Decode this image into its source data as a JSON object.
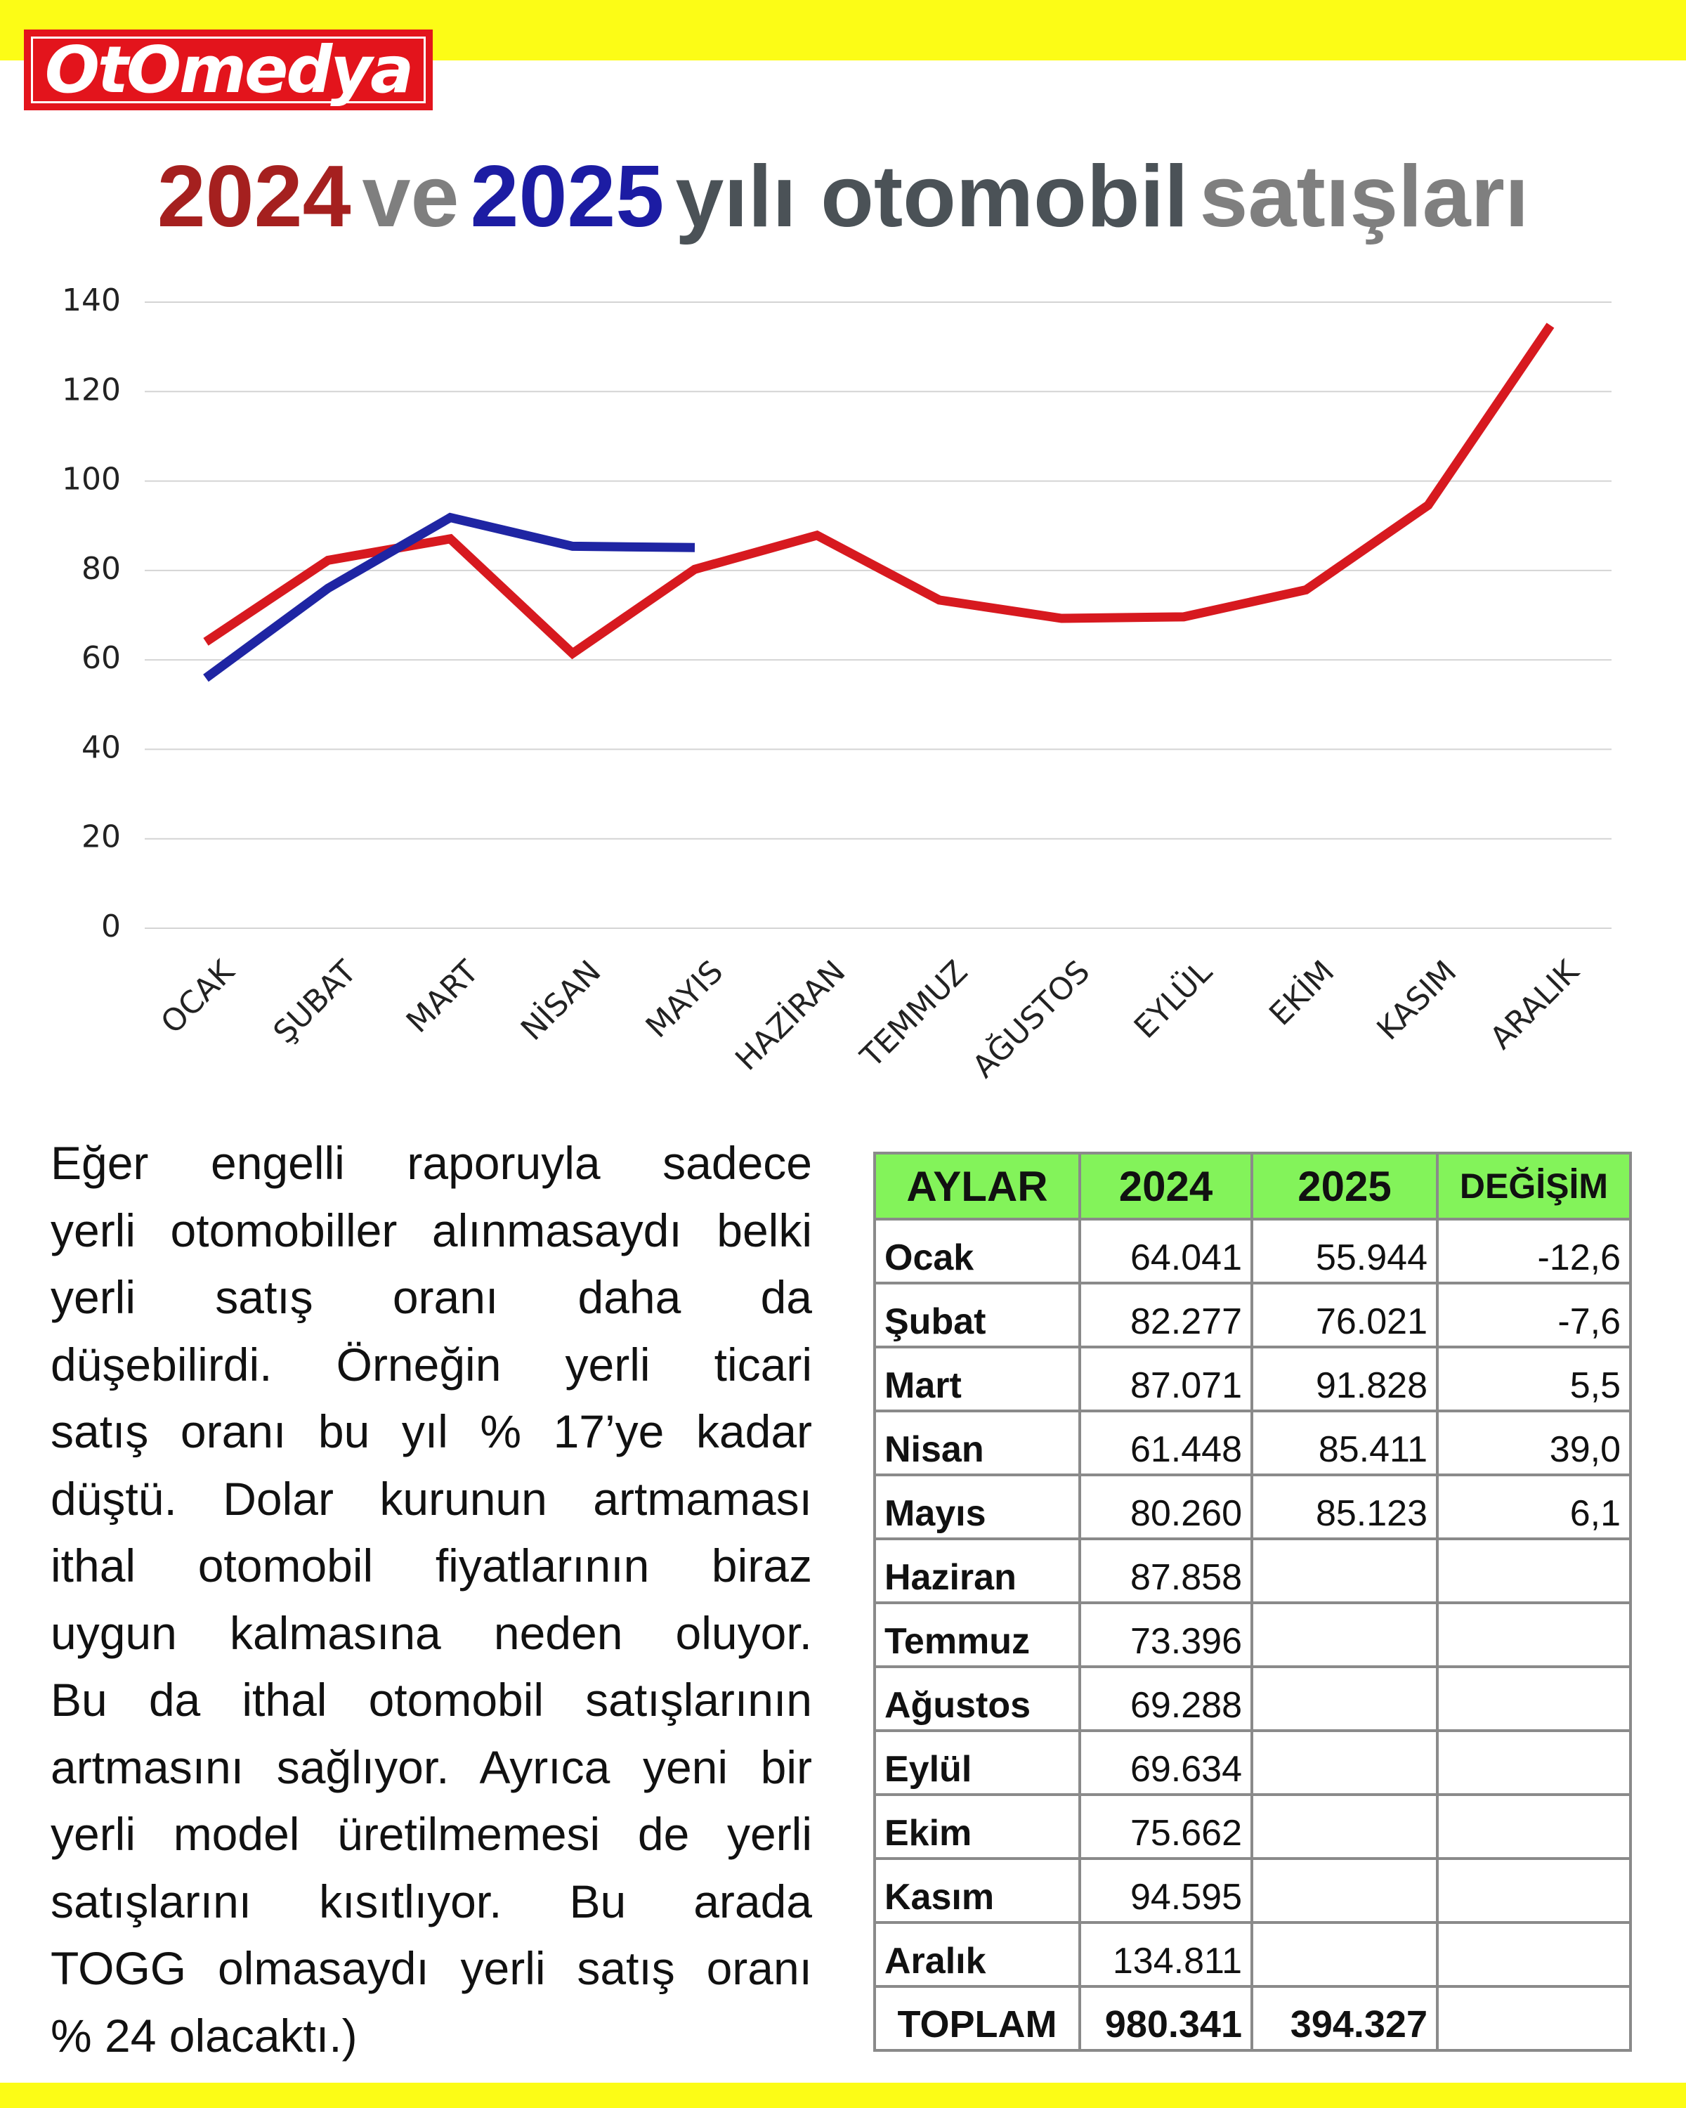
{
  "header": {
    "logo": "OtOmedya",
    "title": [
      "2024",
      "ve",
      "2025",
      "yılı otomobil",
      "satışları"
    ]
  },
  "chart_data": {
    "type": "line",
    "categories": [
      "OCAK",
      "ŞUBAT",
      "MART",
      "NİSAN",
      "MAYIS",
      "HAZİRAN",
      "TEMMUZ",
      "AĞUSTOS",
      "EYLÜL",
      "EKİM",
      "KASIM",
      "ARALIK"
    ],
    "series": [
      {
        "color": "#d7191f",
        "values": [
          64.041,
          82.277,
          87.071,
          61.448,
          80.26,
          87.858,
          73.396,
          69.288,
          69.634,
          75.662,
          94.595,
          134.811
        ]
      },
      {
        "color": "#1f25a3",
        "values": [
          55.944,
          76.021,
          91.828,
          85.411,
          85.123,
          null,
          null,
          null,
          null,
          null,
          null,
          null
        ]
      }
    ],
    "ylim": [
      0,
      140
    ],
    "yticks": [
      0,
      20,
      40,
      60,
      80,
      100,
      120,
      140
    ],
    "grid": true
  },
  "paragraph": [
    "Eğer engelli raporuyla sadece",
    "yerli otomobiller alınmasaydı belki",
    "yerli satış oranı daha da",
    "düşebilirdi. Örneğin yerli ticari",
    "satış oranı bu yıl % 17’ye kadar",
    "düştü. Dolar kurunun artmaması",
    "ithal otomobil fiyatlarının biraz",
    "uygun kalmasına neden oluyor.",
    "Bu da ithal otomobil satışlarının",
    "artmasını sağlıyor. Ayrıca yeni bir",
    "yerli model üretilmemesi de yerli",
    "satışlarını kısıtlıyor. Bu arada",
    "TOGG olmasaydı yerli satış oranı",
    "% 24 olacaktı.)"
  ],
  "table": {
    "header": [
      "AYLAR",
      "2024",
      "2025",
      "DEĞİŞİM"
    ],
    "rows": [
      [
        "Ocak",
        "64.041",
        "55.944",
        "-12,6"
      ],
      [
        "Şubat",
        "82.277",
        "76.021",
        "-7,6"
      ],
      [
        "Mart",
        "87.071",
        "91.828",
        "5,5"
      ],
      [
        "Nisan",
        "61.448",
        "85.411",
        "39,0"
      ],
      [
        "Mayıs",
        "80.260",
        "85.123",
        "6,1"
      ],
      [
        "Haziran",
        "87.858",
        null,
        null
      ],
      [
        "Temmuz",
        "73.396",
        null,
        null
      ],
      [
        "Ağustos",
        "69.288",
        null,
        null
      ],
      [
        "Eylül",
        "69.634",
        null,
        null
      ],
      [
        "Ekim",
        "75.662",
        null,
        null
      ],
      [
        "Kasım",
        "94.595",
        null,
        null
      ],
      [
        "Aralık",
        "134.811",
        null,
        null
      ],
      [
        "TOPLAM",
        "980.341",
        "394.327",
        null
      ]
    ]
  }
}
